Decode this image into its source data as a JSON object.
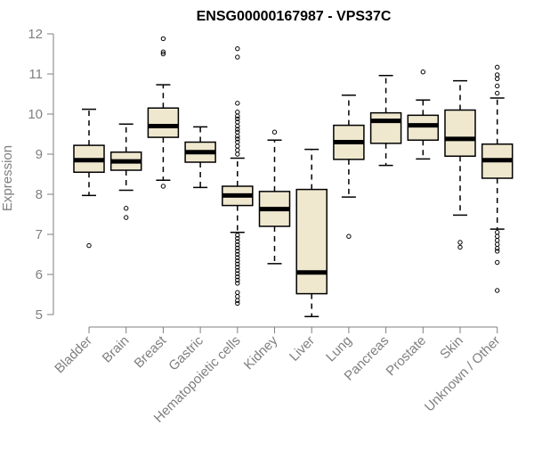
{
  "chart_data": {
    "type": "box",
    "title": "ENSG00000167987 - VPS37C",
    "xlabel": "",
    "ylabel": "Expression",
    "ylim": [
      5,
      12
    ],
    "yticks": [
      5,
      6,
      7,
      8,
      9,
      10,
      11,
      12
    ],
    "box_fill": "#efe8cf",
    "categories": [
      "Bladder",
      "Brain",
      "Breast",
      "Gastric",
      "Hematopoietic cells",
      "Kidney",
      "Liver",
      "Lung",
      "Pancreas",
      "Prostate",
      "Skin",
      "Unknown / Other"
    ],
    "boxes": [
      {
        "category": "Bladder",
        "whisker_low": 7.97,
        "q1": 8.55,
        "median": 8.85,
        "q3": 9.22,
        "whisker_high": 10.12,
        "outliers": [
          6.72
        ]
      },
      {
        "category": "Brain",
        "whisker_low": 8.1,
        "q1": 8.6,
        "median": 8.82,
        "q3": 9.05,
        "whisker_high": 9.75,
        "outliers": [
          7.65,
          7.42
        ]
      },
      {
        "category": "Breast",
        "whisker_low": 8.35,
        "q1": 9.42,
        "median": 9.7,
        "q3": 10.15,
        "whisker_high": 10.73,
        "outliers": [
          11.88,
          11.55,
          11.5,
          8.2
        ]
      },
      {
        "category": "Gastric",
        "whisker_low": 8.17,
        "q1": 8.8,
        "median": 9.05,
        "q3": 9.3,
        "whisker_high": 9.68,
        "outliers": []
      },
      {
        "category": "Hematopoietic cells",
        "whisker_low": 7.05,
        "q1": 7.72,
        "median": 7.97,
        "q3": 8.2,
        "whisker_high": 8.9,
        "outliers": [
          11.63,
          11.42,
          10.27,
          10.05,
          9.95,
          9.88,
          9.8,
          9.7,
          9.62,
          9.55,
          9.45,
          9.38,
          9.3,
          9.2,
          9.1,
          9.0,
          6.98,
          6.9,
          6.82,
          6.74,
          6.66,
          6.58,
          6.5,
          6.42,
          6.34,
          6.26,
          6.18,
          6.1,
          6.02,
          5.94,
          5.86,
          5.78,
          5.55,
          5.45,
          5.35,
          5.28
        ]
      },
      {
        "category": "Kidney",
        "whisker_low": 6.27,
        "q1": 7.2,
        "median": 7.63,
        "q3": 8.07,
        "whisker_high": 9.35,
        "outliers": [
          9.55
        ]
      },
      {
        "category": "Liver",
        "whisker_low": 4.95,
        "q1": 5.52,
        "median": 6.05,
        "q3": 8.12,
        "whisker_high": 9.12,
        "outliers": []
      },
      {
        "category": "Lung",
        "whisker_low": 7.93,
        "q1": 8.87,
        "median": 9.3,
        "q3": 9.72,
        "whisker_high": 10.47,
        "outliers": [
          6.95
        ]
      },
      {
        "category": "Pancreas",
        "whisker_low": 8.72,
        "q1": 9.27,
        "median": 9.83,
        "q3": 10.03,
        "whisker_high": 10.96,
        "outliers": []
      },
      {
        "category": "Prostate",
        "whisker_low": 8.88,
        "q1": 9.35,
        "median": 9.72,
        "q3": 9.97,
        "whisker_high": 10.35,
        "outliers": [
          11.05
        ]
      },
      {
        "category": "Skin",
        "whisker_low": 7.48,
        "q1": 8.95,
        "median": 9.38,
        "q3": 10.1,
        "whisker_high": 10.83,
        "outliers": [
          6.8,
          6.68
        ]
      },
      {
        "category": "Unknown / Other",
        "whisker_low": 7.13,
        "q1": 8.4,
        "median": 8.85,
        "q3": 9.25,
        "whisker_high": 10.4,
        "outliers": [
          11.17,
          10.98,
          10.88,
          10.7,
          10.52,
          7.05,
          6.95,
          6.85,
          6.75,
          6.65,
          6.58,
          6.3,
          5.6
        ]
      }
    ]
  }
}
